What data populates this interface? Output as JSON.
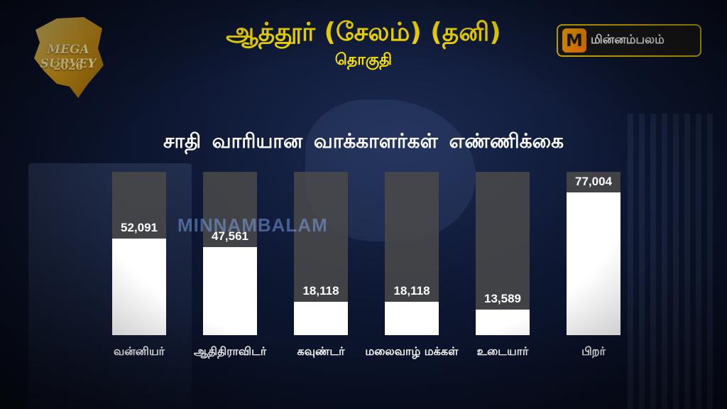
{
  "header": {
    "title": "ஆத்தூர் (சேலம்) (தனி)",
    "subtitle": "தொகுதி"
  },
  "badge": {
    "line1": "MEGA SURVEY",
    "line2": "2026"
  },
  "brand": {
    "mark": "M",
    "name": "மின்னம்பலம்"
  },
  "watermark": "MINNAMBALAM",
  "colors": {
    "title": "#ffe300",
    "bar_fill": "#ffffff",
    "bar_track": "#4a4a4a"
  },
  "chart_data": {
    "type": "bar",
    "title": "சாதி வாரியான வாக்காளர்கள் எண்ணிக்கை",
    "categories": [
      "வன்னியர்",
      "ஆதிதிராவிடர்",
      "கவுண்டர்",
      "மலைவாழ் மக்கள்",
      "உடையார்",
      "பிறர்"
    ],
    "values": [
      52091,
      47561,
      18118,
      18118,
      13589,
      77004
    ],
    "value_labels": [
      "52,091",
      "47,561",
      "18,118",
      "18,118",
      "13,589",
      "77,004"
    ],
    "ylim": [
      0,
      88000
    ],
    "grid": false,
    "legend": "none"
  }
}
